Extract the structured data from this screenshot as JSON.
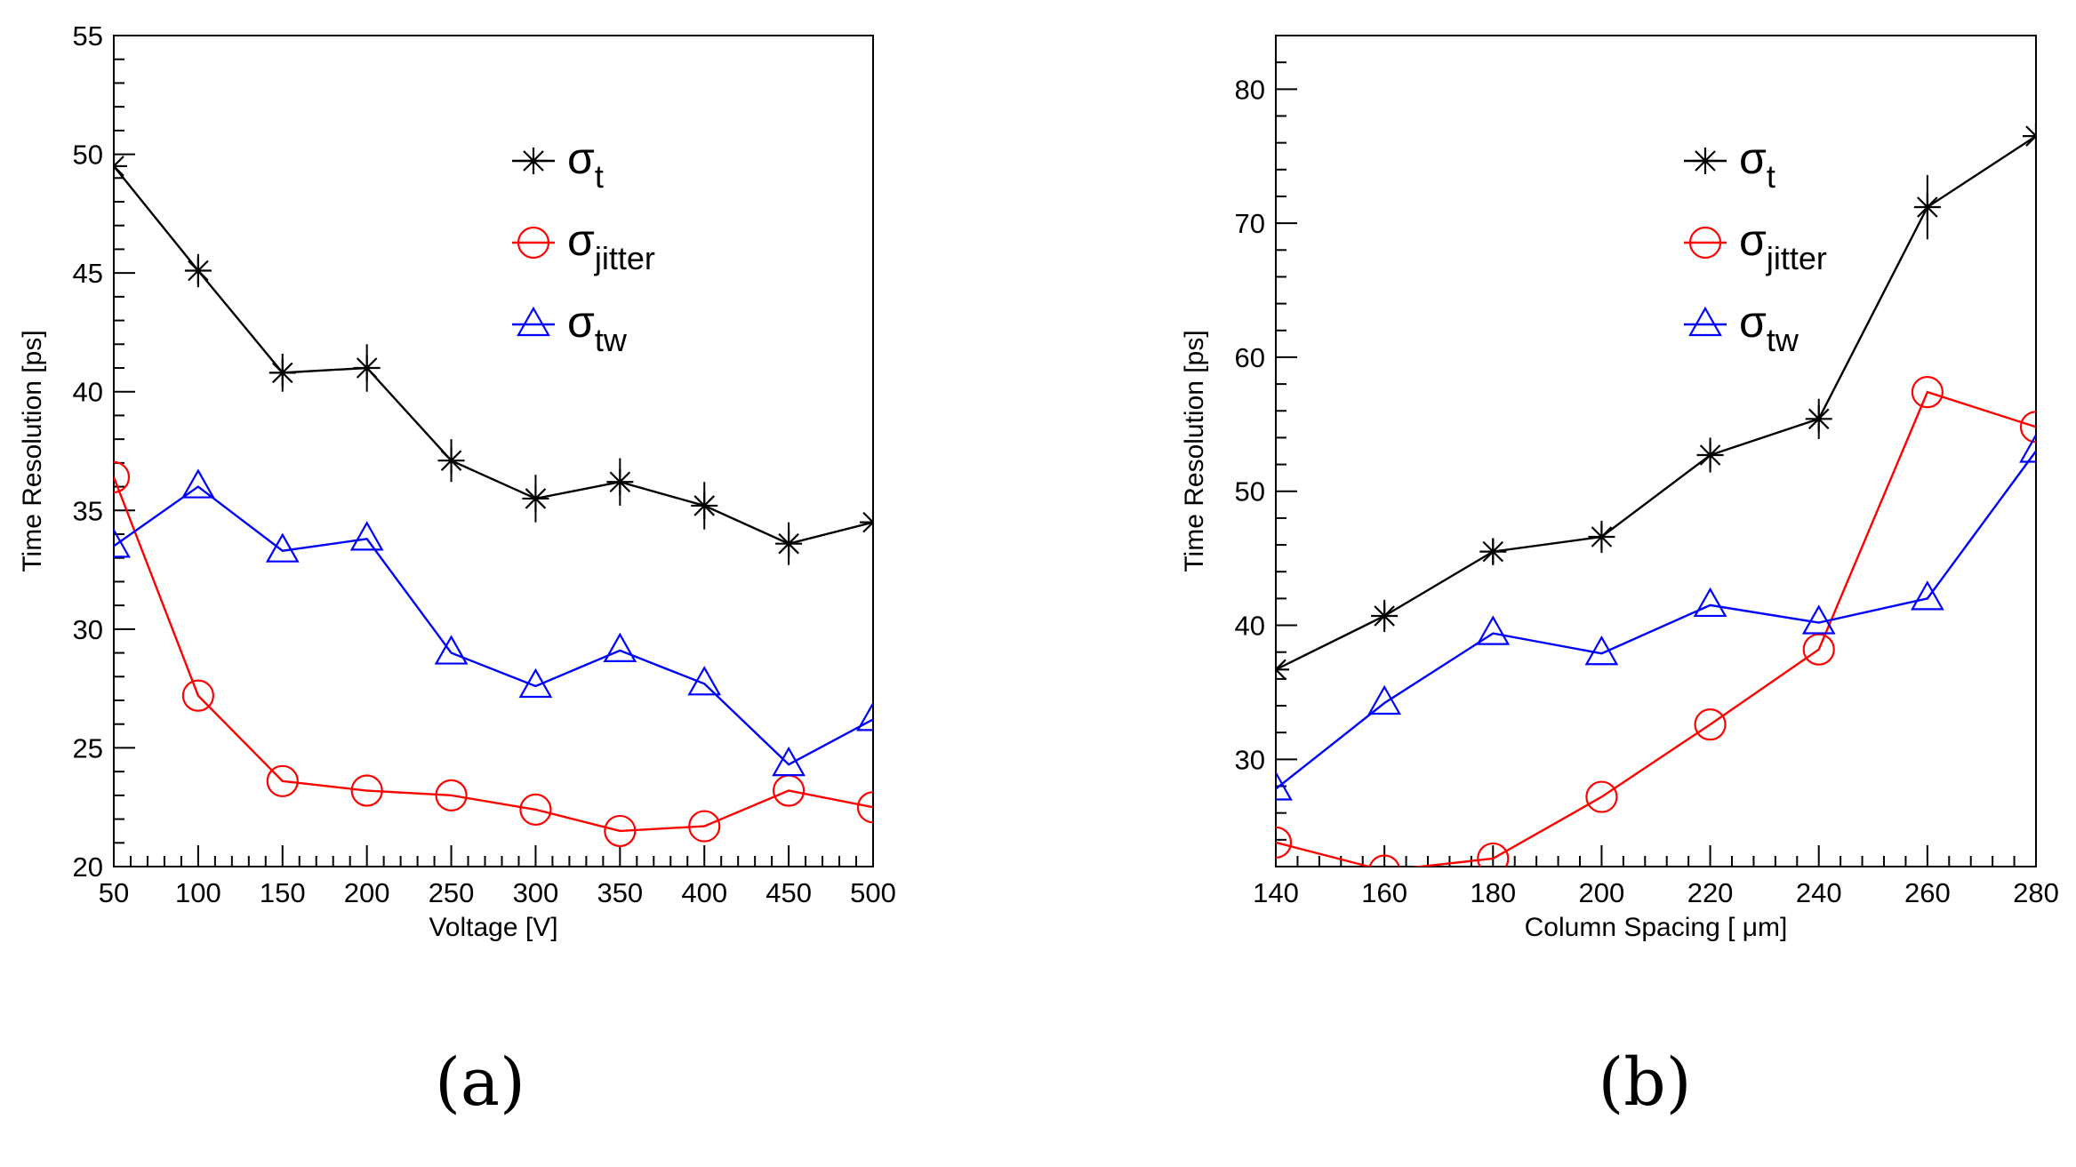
{
  "panels": [
    {
      "label": "(a)"
    },
    {
      "label": "(b)"
    }
  ],
  "chart_data": [
    {
      "type": "line",
      "xlabel": "Voltage [V]",
      "ylabel": "Time Resolution [ps]",
      "xlim": [
        50,
        500
      ],
      "ylim": [
        20,
        55
      ],
      "xticks": [
        50,
        100,
        150,
        200,
        250,
        300,
        350,
        400,
        450,
        500
      ],
      "yticks": [
        20,
        25,
        30,
        35,
        40,
        45,
        50,
        55
      ],
      "legend_placement": "top-center",
      "grid": false,
      "x": [
        50,
        100,
        150,
        200,
        250,
        300,
        350,
        400,
        450,
        500
      ],
      "series": [
        {
          "name": "σ",
          "subscript": "t",
          "color": "#000000",
          "marker": "star",
          "values": [
            49.5,
            45.1,
            40.8,
            41.0,
            37.1,
            35.5,
            36.2,
            35.2,
            33.6,
            34.5
          ],
          "errors": [
            0.9,
            0.7,
            0.8,
            1.0,
            0.9,
            1.0,
            1.0,
            1.0,
            0.9,
            1.0
          ]
        },
        {
          "name": "σ",
          "subscript": "jitter",
          "color": "#ff0000",
          "marker": "circle",
          "values": [
            36.4,
            27.2,
            23.6,
            23.2,
            23.0,
            22.4,
            21.5,
            21.7,
            23.2,
            22.5
          ]
        },
        {
          "name": "σ",
          "subscript": "tw",
          "color": "#0000ff",
          "marker": "triangle",
          "values": [
            33.5,
            36.0,
            33.3,
            33.8,
            29.0,
            27.6,
            29.1,
            27.7,
            24.3,
            26.2
          ]
        }
      ]
    },
    {
      "type": "line",
      "xlabel": "Column Spacing [ μm]",
      "ylabel": "Time Resolution [ps]",
      "xlim": [
        140,
        280
      ],
      "ylim": [
        22,
        84
      ],
      "xticks": [
        140,
        160,
        180,
        200,
        220,
        240,
        260,
        280
      ],
      "yticks": [
        30,
        40,
        50,
        60,
        70,
        80
      ],
      "legend_placement": "top-right",
      "grid": false,
      "x": [
        140,
        160,
        180,
        200,
        220,
        240,
        260,
        280
      ],
      "series": [
        {
          "name": "σ",
          "subscript": "t",
          "color": "#000000",
          "marker": "star",
          "values": [
            36.7,
            40.7,
            45.5,
            46.6,
            52.7,
            55.4,
            71.2,
            76.5
          ],
          "errors": [
            0.6,
            1.2,
            1.0,
            1.2,
            1.3,
            1.5,
            2.4,
            7.5
          ]
        },
        {
          "name": "σ",
          "subscript": "jitter",
          "color": "#ff0000",
          "marker": "circle",
          "values": [
            23.8,
            21.7,
            22.6,
            27.2,
            32.6,
            38.2,
            57.4,
            54.8
          ]
        },
        {
          "name": "σ",
          "subscript": "tw",
          "color": "#0000ff",
          "marker": "triangle",
          "values": [
            27.8,
            34.2,
            39.4,
            37.9,
            41.5,
            40.2,
            42.0,
            53.0
          ]
        }
      ]
    }
  ]
}
